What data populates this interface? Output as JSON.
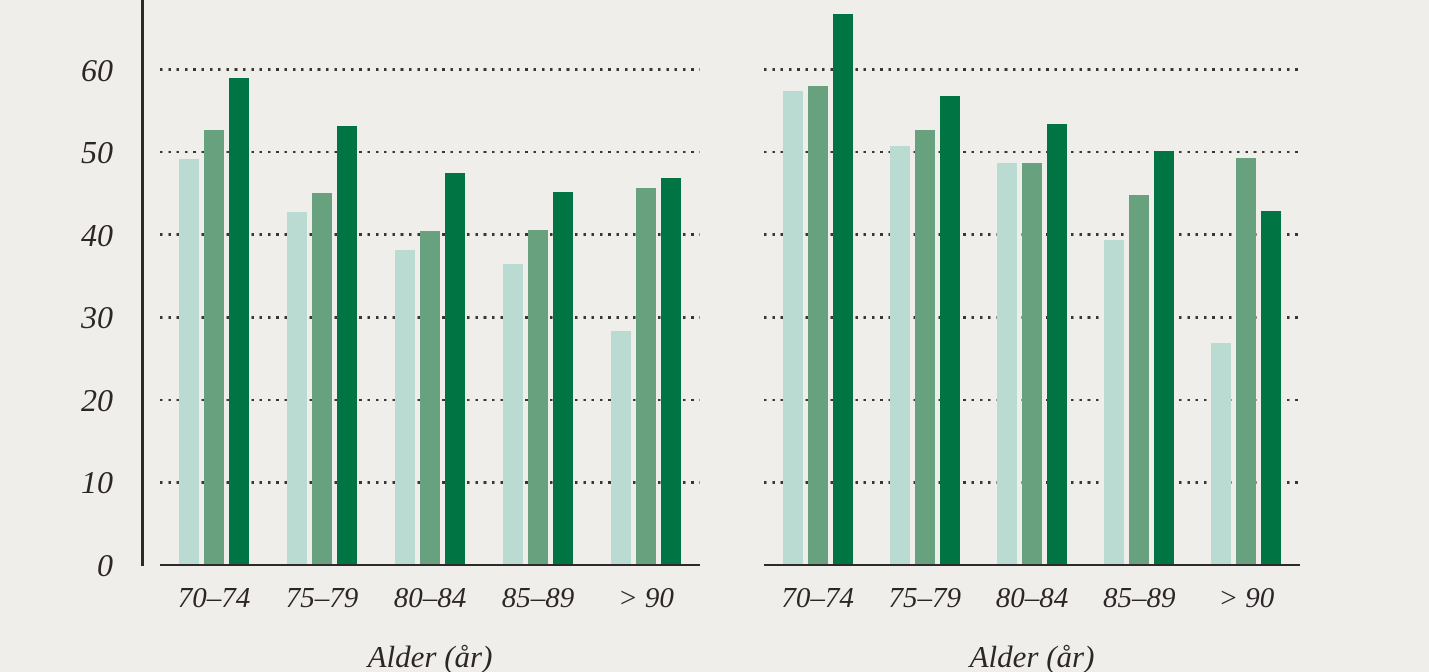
{
  "colors": {
    "background": "#f0eeeb",
    "axis": "#2e2a2b",
    "text": "#2b2627",
    "gridline_dots": "#3a3634",
    "series_light": "#b9dbd2",
    "series_medium": "#67a17e",
    "series_dark": "#007543"
  },
  "chart_data": [
    {
      "type": "bar",
      "title": "",
      "categories": [
        "70–74",
        "75–79",
        "80–84",
        "85–89",
        "> 90"
      ],
      "series": [
        {
          "name": "series-1-light-green",
          "color": "#b9dbd2",
          "values": [
            49.2,
            42.7,
            38.1,
            36.4,
            28.3
          ]
        },
        {
          "name": "series-2-medium-green",
          "color": "#67a17e",
          "values": [
            52.7,
            45.1,
            40.5,
            40.6,
            45.7
          ]
        },
        {
          "name": "series-3-dark-green",
          "color": "#007543",
          "values": [
            59.0,
            53.2,
            47.5,
            45.2,
            46.9
          ]
        }
      ],
      "xlabel": "Alder (år)",
      "ylabel": "",
      "y_ticks": [
        0,
        10,
        20,
        30,
        40,
        50,
        60
      ],
      "y_gridlines": [
        10,
        20,
        30,
        40,
        50,
        60
      ],
      "ylim": [
        0,
        68.5
      ],
      "grid": "dotted-horizontal",
      "legend": "none"
    },
    {
      "type": "bar",
      "title": "",
      "categories": [
        "70–74",
        "75–79",
        "80–84",
        "85–89",
        "> 90"
      ],
      "series": [
        {
          "name": "series-1-light-green",
          "color": "#b9dbd2",
          "values": [
            57.4,
            50.8,
            48.7,
            39.4,
            26.9
          ]
        },
        {
          "name": "series-2-medium-green",
          "color": "#67a17e",
          "values": [
            58.0,
            52.7,
            48.7,
            44.8,
            49.3
          ]
        },
        {
          "name": "series-3-dark-green",
          "color": "#007543",
          "values": [
            66.7,
            56.8,
            53.4,
            50.1,
            42.9
          ]
        }
      ],
      "xlabel": "Alder (år)",
      "ylabel": "",
      "y_ticks": [
        0,
        10,
        20,
        30,
        40,
        50,
        60
      ],
      "y_gridlines": [
        10,
        20,
        30,
        40,
        50,
        60
      ],
      "ylim": [
        0,
        68.5
      ],
      "grid": "dotted-horizontal",
      "legend": "none"
    }
  ]
}
